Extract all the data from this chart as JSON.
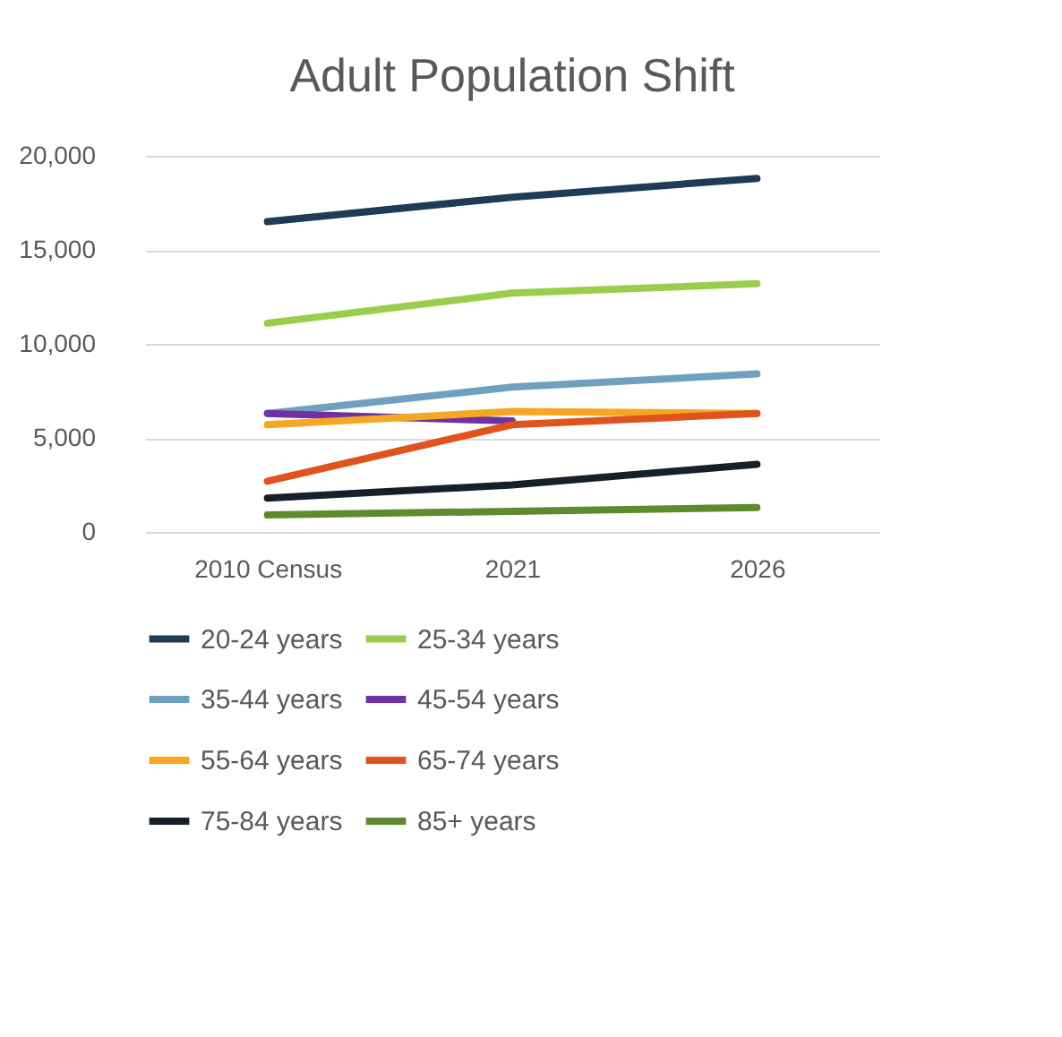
{
  "chart_data": {
    "type": "line",
    "title": "Adult Population Shift",
    "categories": [
      "2010 Census",
      "2021",
      "2026"
    ],
    "ylim": [
      0,
      20000
    ],
    "yticks": [
      {
        "value": 0,
        "label": "0"
      },
      {
        "value": 5000,
        "label": "5,000"
      },
      {
        "value": 10000,
        "label": "10,000"
      },
      {
        "value": 15000,
        "label": "15,000"
      },
      {
        "value": 20000,
        "label": "20,000"
      }
    ],
    "grid": "y",
    "legend": "bottom",
    "marker": "none",
    "line_style": "solid",
    "series": [
      {
        "name": "20-24 years",
        "color": "#1f3b57",
        "values": [
          16500,
          17800,
          18800
        ]
      },
      {
        "name": "25-34 years",
        "color": "#9acd4a",
        "values": [
          11100,
          12700,
          13200
        ]
      },
      {
        "name": "35-44 years",
        "color": "#6fa0bf",
        "values": [
          6300,
          7700,
          8400
        ]
      },
      {
        "name": "45-54 years",
        "color": "#7030a0",
        "values": [
          6300,
          5900,
          null
        ]
      },
      {
        "name": "55-64 years",
        "color": "#f5a623",
        "values": [
          5700,
          6400,
          6300
        ]
      },
      {
        "name": "65-74 years",
        "color": "#e0531c",
        "values": [
          2700,
          5700,
          6300
        ]
      },
      {
        "name": "75-84 years",
        "color": "#16202b",
        "values": [
          1800,
          2500,
          3600
        ]
      },
      {
        "name": "85+ years",
        "color": "#5f8a2e",
        "values": [
          900,
          1100,
          1300
        ]
      }
    ]
  }
}
